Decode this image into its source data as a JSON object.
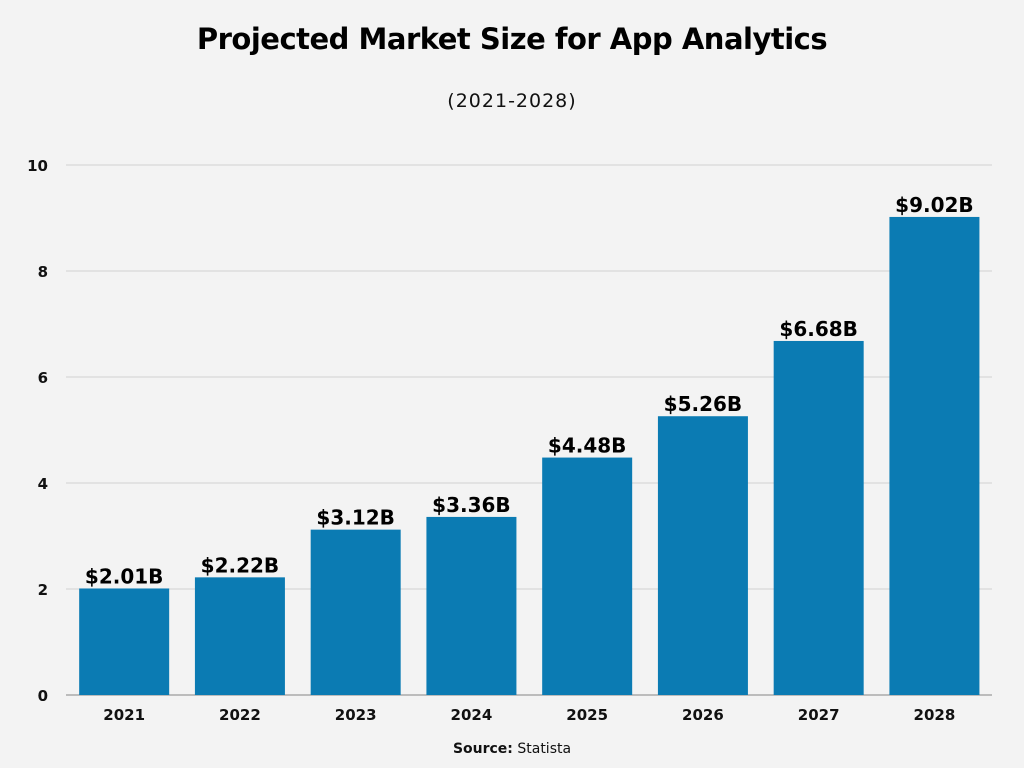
{
  "chart_data": {
    "type": "bar",
    "title": "Projected Market Size for App Analytics",
    "subtitle": "(2021-2028)",
    "categories": [
      "2021",
      "2022",
      "2023",
      "2024",
      "2025",
      "2026",
      "2027",
      "2028"
    ],
    "values": [
      2.01,
      2.22,
      3.12,
      3.36,
      4.48,
      5.26,
      6.68,
      9.02
    ],
    "data_labels": [
      "$2.01B",
      "$2.22B",
      "$3.12B",
      "$3.36B",
      "$4.48B",
      "$5.26B",
      "$6.68B",
      "$9.02B"
    ],
    "ylim": [
      0,
      10
    ],
    "yticks": [
      0,
      2,
      4,
      6,
      8,
      10
    ],
    "xlabel": "",
    "ylabel": "",
    "grid": true,
    "bar_color": "#0b7bb3",
    "source_label": "Source:",
    "source": "Statista"
  }
}
